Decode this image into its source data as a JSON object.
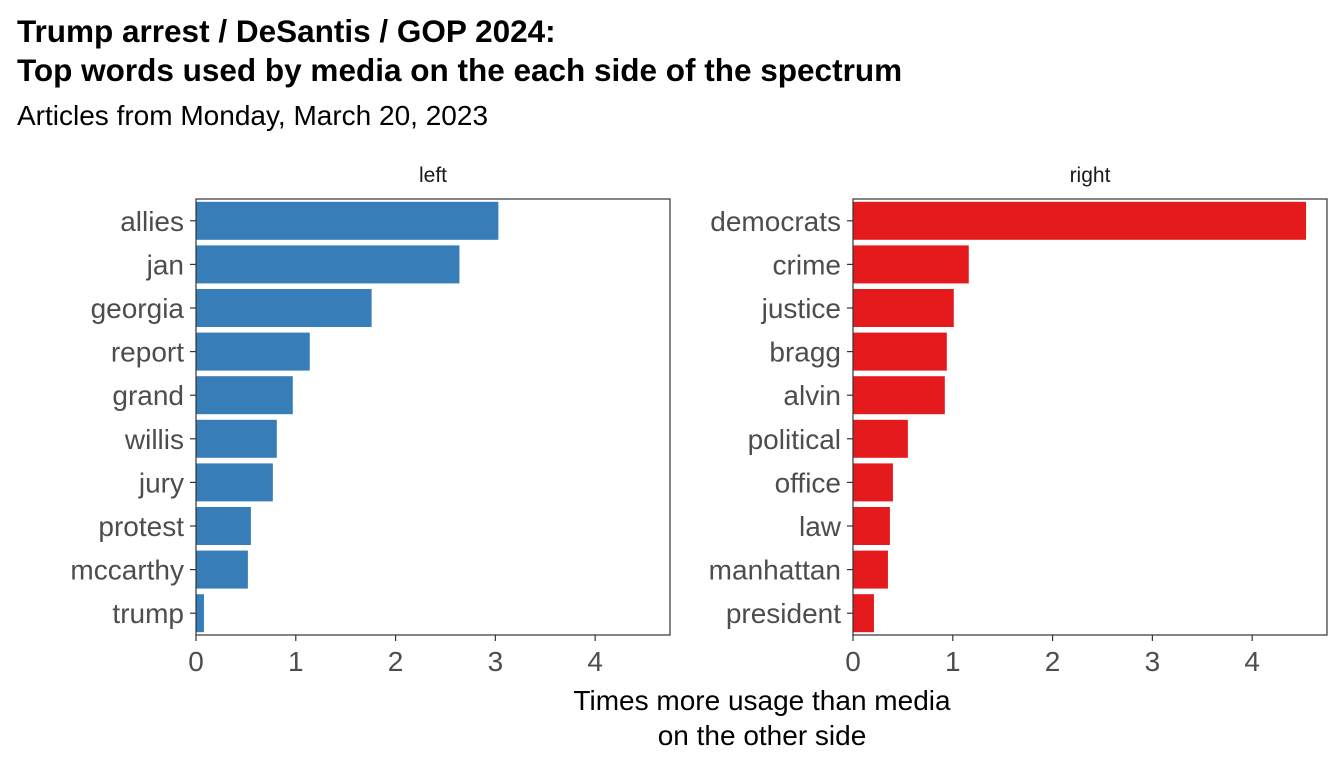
{
  "title_lines": [
    "Trump arrest / DeSantis / GOP 2024:",
    "Top words used by media on the each side of the spectrum"
  ],
  "subtitle": "Articles from Monday, March 20, 2023",
  "xlabel_lines": [
    "Times more usage than media",
    "on the other side"
  ],
  "chart_data": {
    "type": "bar",
    "orientation": "horizontal",
    "facets": [
      {
        "name": "left",
        "color": "#377EB8",
        "categories": [
          "allies",
          "jan",
          "georgia",
          "report",
          "grand",
          "willis",
          "jury",
          "protest",
          "mccarthy",
          "trump"
        ],
        "values": [
          3.03,
          2.64,
          1.76,
          1.14,
          0.97,
          0.81,
          0.77,
          0.55,
          0.52,
          0.08
        ]
      },
      {
        "name": "right",
        "color": "#E41A1C",
        "categories": [
          "democrats",
          "crime",
          "justice",
          "bragg",
          "alvin",
          "political",
          "office",
          "law",
          "manhattan",
          "president"
        ],
        "values": [
          4.54,
          1.16,
          1.01,
          0.94,
          0.92,
          0.55,
          0.4,
          0.37,
          0.35,
          0.21
        ]
      }
    ],
    "xlim": [
      0,
      4.75
    ],
    "x_ticks": [
      0,
      1,
      2,
      3,
      4
    ],
    "grid": false,
    "xlabel": "Times more usage than media on the other side",
    "ylabel": ""
  }
}
